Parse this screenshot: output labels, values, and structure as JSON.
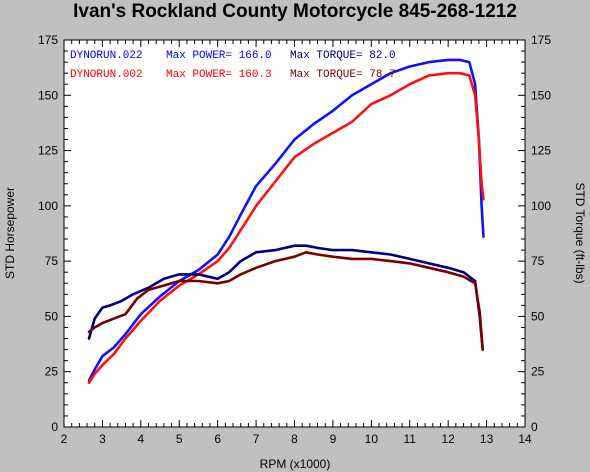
{
  "title": "Ivan's Rockland County Motorcycle  845-268-1212",
  "chart_data": {
    "type": "line",
    "xlabel": "RPM (x1000)",
    "ylabel_left": "STD Horsepower",
    "ylabel_right": "STD Torque (ft-lbs)",
    "xlim": [
      2,
      14
    ],
    "ylim": [
      0,
      175
    ],
    "xticks": [
      2,
      3,
      4,
      5,
      6,
      7,
      8,
      9,
      10,
      11,
      12,
      13,
      14
    ],
    "yticks": [
      0,
      25,
      50,
      75,
      100,
      125,
      150,
      175
    ],
    "grid": false,
    "legend_placement": "top-left",
    "legend": [
      {
        "run": "DYNORUN.022",
        "power_label": "Max POWER= 166.0",
        "torque_label": "Max TORQUE= 82.0",
        "color": "#0000ff"
      },
      {
        "run": "DYNORUN.002",
        "power_label": "Max POWER= 160.3",
        "torque_label": "Max TORQUE= 78.7",
        "color": "#ff0000"
      }
    ],
    "series": [
      {
        "name": "DYNORUN.022",
        "measure": "power",
        "color": "#1010ff",
        "x": [
          2.65,
          2.8,
          3.0,
          3.3,
          3.6,
          4.0,
          4.5,
          5.0,
          5.5,
          6.0,
          6.3,
          6.6,
          7.0,
          7.5,
          8.0,
          8.5,
          9.0,
          9.5,
          10.0,
          10.5,
          11.0,
          11.5,
          12.0,
          12.3,
          12.55,
          12.7,
          12.8,
          12.87,
          12.92
        ],
        "y": [
          21,
          26,
          32,
          36,
          42,
          51,
          59,
          66,
          71,
          78,
          86,
          96,
          109,
          119,
          130,
          137,
          143,
          150,
          155,
          160,
          163,
          165,
          166,
          166,
          165,
          155,
          130,
          100,
          86
        ]
      },
      {
        "name": "DYNORUN.002",
        "measure": "power",
        "color": "#ff1010",
        "x": [
          2.65,
          2.8,
          3.0,
          3.3,
          3.6,
          4.0,
          4.5,
          5.0,
          5.5,
          6.0,
          6.3,
          6.6,
          7.0,
          7.5,
          8.0,
          8.5,
          9.0,
          9.5,
          10.0,
          10.5,
          11.0,
          11.5,
          12.0,
          12.3,
          12.55,
          12.7,
          12.8,
          12.87,
          12.92
        ],
        "y": [
          20,
          24,
          28,
          33,
          40,
          48,
          57,
          64,
          69,
          75,
          81,
          89,
          100,
          111,
          122,
          128,
          133,
          138,
          146,
          150,
          155,
          159,
          160,
          160,
          159,
          150,
          130,
          110,
          103
        ]
      },
      {
        "name": "DYNORUN.022",
        "measure": "torque",
        "color": "#000080",
        "x": [
          2.65,
          2.8,
          3.0,
          3.2,
          3.5,
          3.8,
          4.2,
          4.6,
          5.0,
          5.5,
          6.0,
          6.3,
          6.6,
          7.0,
          7.5,
          8.0,
          8.3,
          8.6,
          9.0,
          9.5,
          10.0,
          10.5,
          11.0,
          11.5,
          12.0,
          12.4,
          12.7,
          12.82,
          12.9
        ],
        "y": [
          40,
          49,
          54,
          55,
          57,
          60,
          63,
          67,
          69,
          69,
          67,
          70,
          75,
          79,
          80,
          82,
          82,
          81,
          80,
          80,
          79,
          78,
          76,
          74,
          72,
          70,
          66,
          50,
          35
        ]
      },
      {
        "name": "DYNORUN.002",
        "measure": "torque",
        "color": "#7a0000",
        "x": [
          2.65,
          2.8,
          3.0,
          3.3,
          3.6,
          3.9,
          4.2,
          4.6,
          5.0,
          5.5,
          6.0,
          6.3,
          6.6,
          7.0,
          7.5,
          8.0,
          8.3,
          8.6,
          9.0,
          9.5,
          10.0,
          10.5,
          11.0,
          11.5,
          12.0,
          12.4,
          12.7,
          12.82,
          12.9
        ],
        "y": [
          43,
          45,
          47,
          49,
          51,
          58,
          62,
          64,
          66,
          66,
          65,
          66,
          69,
          72,
          75,
          77,
          79,
          78,
          77,
          76,
          76,
          75,
          74,
          72,
          70,
          68,
          65,
          52,
          35
        ]
      }
    ]
  }
}
